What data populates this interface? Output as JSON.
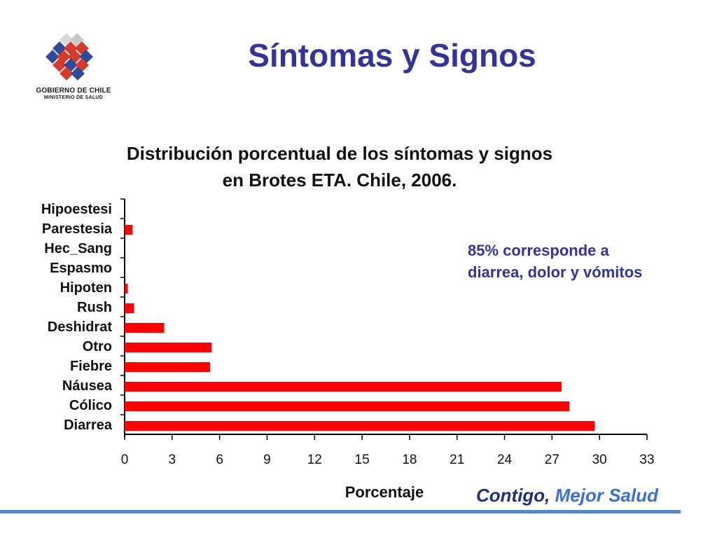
{
  "slide": {
    "title": "Síntomas y Signos",
    "logo_line1": "GOBIERNO DE CHILE",
    "logo_line2": "MINISTERIO DE SALUD",
    "note_line1": "85% corresponde a",
    "note_line2": "diarrea, dolor y vómitos",
    "tagline_part1": "Contigo,",
    "tagline_part2": " Mejor Salud"
  },
  "colors": {
    "title": "#333399",
    "bar": "#ff0000",
    "bottom_line": "#5b86c9"
  },
  "chart_data": {
    "type": "bar",
    "orientation": "horizontal",
    "title_line1": "Distribución porcentual de los síntomas y signos",
    "title_line2": "en Brotes ETA. Chile, 2006.",
    "xlabel": "Porcentaje",
    "ylabel": "",
    "xlim": [
      0,
      33
    ],
    "xticks": [
      0,
      3,
      6,
      9,
      12,
      15,
      18,
      21,
      24,
      27,
      30,
      33
    ],
    "grid": false,
    "categories": [
      "Hipoestesi",
      "Parestesia",
      "Hec_Sang",
      "Espasmo",
      "Hipoten",
      "Rush",
      "Deshidrat",
      "Otro",
      "Fiebre",
      "Náusea",
      "Cólico",
      "Diarrea"
    ],
    "values": [
      0,
      0.5,
      0,
      0,
      0.2,
      0.6,
      2.5,
      5.5,
      5.4,
      27.6,
      28.1,
      29.7
    ]
  }
}
